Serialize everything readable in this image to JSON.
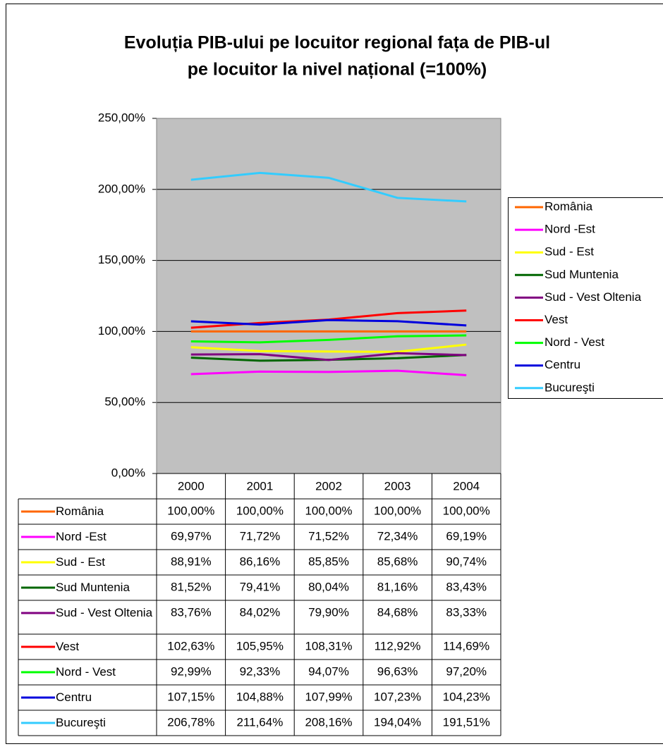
{
  "chart_data": {
    "type": "line",
    "title": [
      "Evoluția PIB-ului pe locuitor regional fața de PIB-ul",
      "pe locuitor la nivel național (=100%)"
    ],
    "categories": [
      "2000",
      "2001",
      "2002",
      "2003",
      "2004"
    ],
    "ylim": [
      0,
      250
    ],
    "yticks": [
      {
        "value": 0,
        "label": "0,00%"
      },
      {
        "value": 50,
        "label": "50,00%"
      },
      {
        "value": 100,
        "label": "100,00%"
      },
      {
        "value": 150,
        "label": "150,00%"
      },
      {
        "value": 200,
        "label": "200,00%"
      },
      {
        "value": 250,
        "label": "250,00%"
      }
    ],
    "grid": true,
    "legend": "right",
    "series": [
      {
        "name": "România",
        "color": "#ff6600",
        "values": [
          100,
          100,
          100,
          100,
          100
        ],
        "value_labels": [
          "100,00%",
          "100,00%",
          "100,00%",
          "100,00%",
          "100,00%"
        ]
      },
      {
        "name": "Nord -Est",
        "color": "#ff00ff",
        "values": [
          69.97,
          71.72,
          71.52,
          72.34,
          69.19
        ],
        "value_labels": [
          "69,97%",
          "71,72%",
          "71,52%",
          "72,34%",
          "69,19%"
        ]
      },
      {
        "name": "Sud - Est",
        "color": "#ffff00",
        "values": [
          88.91,
          86.16,
          85.85,
          85.68,
          90.74
        ],
        "value_labels": [
          "88,91%",
          "86,16%",
          "85,85%",
          "85,68%",
          "90,74%"
        ]
      },
      {
        "name": "Sud Muntenia",
        "color": "#006600",
        "values": [
          81.52,
          79.41,
          80.04,
          81.16,
          83.43
        ],
        "value_labels": [
          "81,52%",
          "79,41%",
          "80,04%",
          "81,16%",
          "83,43%"
        ]
      },
      {
        "name": "Sud - Vest Oltenia",
        "color": "#800080",
        "values": [
          83.76,
          84.02,
          79.9,
          84.68,
          83.33
        ],
        "value_labels": [
          "83,76%",
          "84,02%",
          "79,90%",
          "84,68%",
          "83,33%"
        ]
      },
      {
        "name": "Vest",
        "color": "#ff0000",
        "values": [
          102.63,
          105.95,
          108.31,
          112.92,
          114.69
        ],
        "value_labels": [
          "102,63%",
          "105,95%",
          "108,31%",
          "112,92%",
          "114,69%"
        ]
      },
      {
        "name": "Nord - Vest",
        "color": "#00ff00",
        "values": [
          92.99,
          92.33,
          94.07,
          96.63,
          97.2
        ],
        "value_labels": [
          "92,99%",
          "92,33%",
          "94,07%",
          "96,63%",
          "97,20%"
        ]
      },
      {
        "name": "Centru",
        "color": "#0000dd",
        "values": [
          107.15,
          104.88,
          107.99,
          107.23,
          104.23
        ],
        "value_labels": [
          "107,15%",
          "104,88%",
          "107,99%",
          "107,23%",
          "104,23%"
        ]
      },
      {
        "name": "Bucureşti",
        "color": "#33ccff",
        "values": [
          206.78,
          211.64,
          208.16,
          194.04,
          191.51
        ],
        "value_labels": [
          "206,78%",
          "211,64%",
          "208,16%",
          "194,04%",
          "191,51%"
        ]
      }
    ]
  }
}
